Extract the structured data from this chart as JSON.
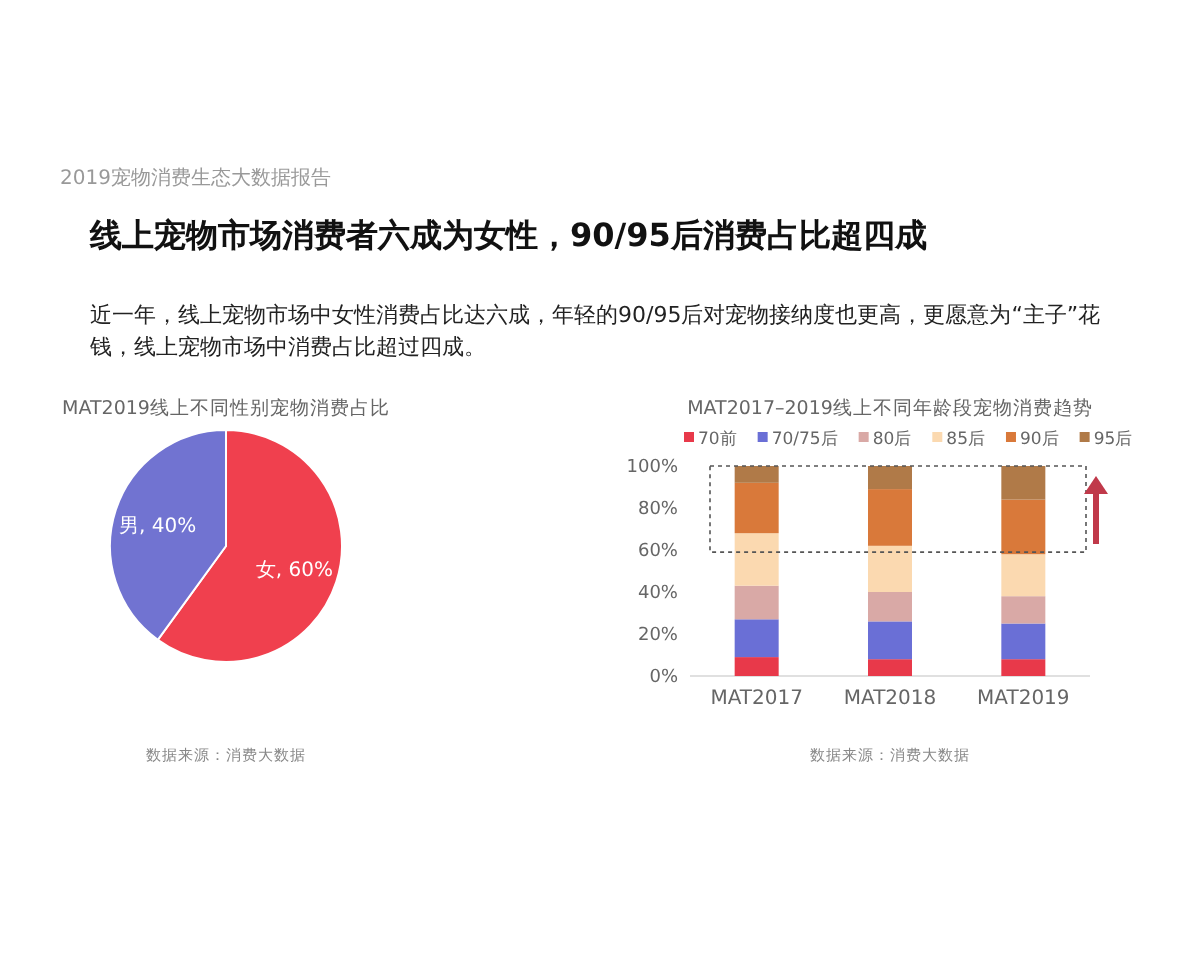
{
  "chart_data": [
    {
      "type": "other",
      "title": "线上宠物市场消费者六成为女性，90/95后消费占比超四成",
      "subtitle": "近一年，线上宠物市场中女性消费占比达六成，年轻的90/95后对宠物接纳度也更高，更愿意为“主子”花钱，线上宠物市场中消费占比超过四成。",
      "annotations": [
        "2019宠物消费生态大数据报告"
      ]
    },
    {
      "type": "pie",
      "title": "MAT2019线上不同性别宠物消费占比",
      "categories": [
        "女",
        "男"
      ],
      "values": [
        60,
        40
      ],
      "colors": [
        "#f0404e",
        "#7173d1"
      ],
      "value_labels": [
        ", 60%",
        ", 40%"
      ],
      "annotations": [
        "数据来源：消费大数据"
      ]
    },
    {
      "type": "bar",
      "title": "MAT2017–2019线上不同年龄段宠物消费趋势",
      "categories": [
        "MAT2017",
        "MAT2018",
        "MAT2019"
      ],
      "stacked": true,
      "legend": "top",
      "ylim": [
        0,
        100
      ],
      "yticks": [
        {
          "value": 0,
          "label": "0%"
        },
        {
          "value": 20,
          "label": "20%"
        },
        {
          "value": 40,
          "label": "40%"
        },
        {
          "value": 60,
          "label": "60%"
        },
        {
          "value": 80,
          "label": "80%"
        },
        {
          "value": 100,
          "label": "100%"
        }
      ],
      "series": [
        {
          "name": "70前",
          "color": "#e8394a",
          "values": [
            9,
            8,
            8
          ]
        },
        {
          "name": "70/75后",
          "color": "#6a6fd6",
          "values": [
            18,
            18,
            17
          ]
        },
        {
          "name": "80后",
          "color": "#d9a9a6",
          "values": [
            16,
            14,
            13
          ]
        },
        {
          "name": "85后",
          "color": "#fbd9b0",
          "values": [
            25,
            22,
            20
          ]
        },
        {
          "name": "90后",
          "color": "#d9793a",
          "values": [
            24,
            27,
            26
          ]
        },
        {
          "name": "95后",
          "color": "#b07a48",
          "values": [
            8,
            11,
            16
          ]
        }
      ],
      "annotations": [
        "数据来源：消费大数据"
      ]
    }
  ]
}
